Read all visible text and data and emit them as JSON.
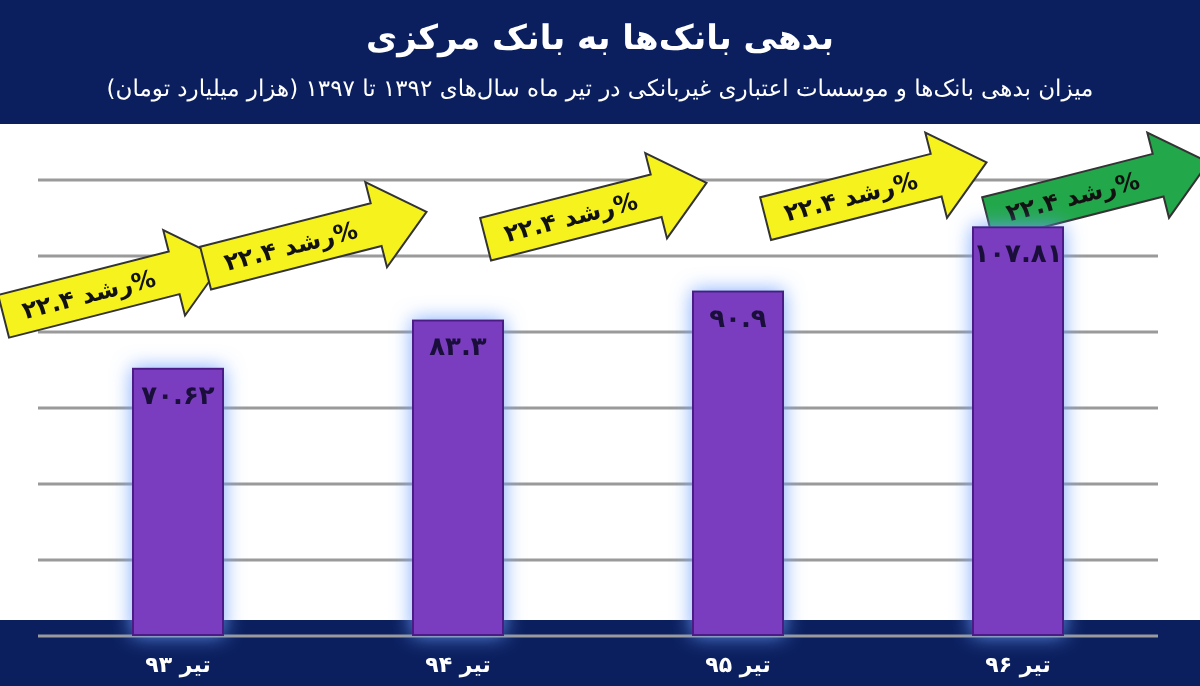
{
  "chart_data": {
    "type": "bar",
    "title": "بدهی بانک‌ها به بانک مرکزی",
    "subtitle": "میزان بدهی بانک‌ها و موسسات اعتباری غیربانکی در تیر ماه سال‌های ۱۳۹۲ تا ۱۳۹۷ (هزار میلیارد تومان)",
    "categories": [
      "تیر ۹۳",
      "تیر ۹۴",
      "تیر ۹۵",
      "تیر ۹۶"
    ],
    "values": [
      70.62,
      83.3,
      90.9,
      107.81
    ],
    "value_labels": [
      "۷۰.۶۲",
      "۸۳.۳",
      "۹۰.۹",
      "۱۰۷.۸۱"
    ],
    "color": "#7a3cc0",
    "tick_labels": "x",
    "grid": "y",
    "annotations": [
      "رشد ۲۲.۴%",
      "رشد ۲۲.۴%",
      "رشد ۲۲.۴%",
      "رشد ۲۲.۴%",
      "رشد ۲۲.۴%"
    ]
  }
}
